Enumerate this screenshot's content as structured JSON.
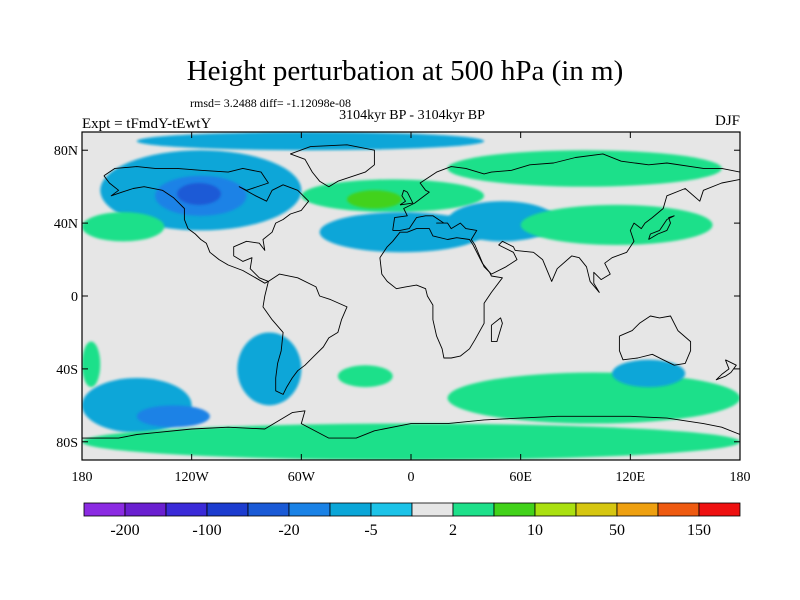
{
  "chart_data": {
    "type": "heatmap",
    "title": "Height perturbation at 500 hPa (in m)",
    "stats": "rmsd= 3.2488  diff= -1.12098e-08",
    "subtitle": "3104kyr BP - 3104kyr BP",
    "left_label": "Expt = tFmdY-tEwtY",
    "right_label": "DJF",
    "projection": "cylindrical-equidistant",
    "x_range": [
      -180,
      180
    ],
    "y_range": [
      -90,
      90
    ],
    "y_ticks": [
      {
        "lat": 80,
        "label": "80N"
      },
      {
        "lat": 40,
        "label": "40N"
      },
      {
        "lat": 0,
        "label": "0"
      },
      {
        "lat": -40,
        "label": "40S"
      },
      {
        "lat": -80,
        "label": "80S"
      }
    ],
    "x_ticks": [
      {
        "lon": -180,
        "label": "180"
      },
      {
        "lon": -120,
        "label": "120W"
      },
      {
        "lon": -60,
        "label": "60W"
      },
      {
        "lon": 0,
        "label": "0"
      },
      {
        "lon": 60,
        "label": "60E"
      },
      {
        "lon": 120,
        "label": "120E"
      },
      {
        "lon": 180,
        "label": "180"
      }
    ],
    "colorbar": {
      "levels": [
        -200,
        -150,
        -100,
        -50,
        -20,
        -10,
        -5,
        -2,
        2,
        5,
        10,
        20,
        50,
        100,
        150,
        200
      ],
      "labels": [
        "-200",
        "-100",
        "-20",
        "-5",
        "2",
        "10",
        "50",
        "150"
      ],
      "colors": [
        "#8b2be2",
        "#6a1fd0",
        "#3a2ad8",
        "#1c3ccf",
        "#1a5ad6",
        "#1a82e6",
        "#0aa6d8",
        "#1cc3e8",
        "#e6e6e6",
        "#1ee08a",
        "#42d21a",
        "#aae010",
        "#d6c610",
        "#eea010",
        "#ee5a10",
        "#ee1010"
      ]
    },
    "blobs": [
      {
        "lon": [
          -150,
          40
        ],
        "lat": [
          80,
          90
        ],
        "level": "-5",
        "note": "Arctic negative band"
      },
      {
        "lon": [
          -170,
          -60
        ],
        "lat": [
          36,
          80
        ],
        "level": "-5",
        "note": "North Pacific / North America low"
      },
      {
        "lon": [
          -140,
          -90
        ],
        "lat": [
          44,
          66
        ],
        "level": "-10"
      },
      {
        "lon": [
          -128,
          -104
        ],
        "lat": [
          50,
          62
        ],
        "level": "-20"
      },
      {
        "lon": [
          -60,
          40
        ],
        "lat": [
          46,
          64
        ],
        "level": "5",
        "note": "North Atlantic / Europe high"
      },
      {
        "lon": [
          -35,
          -5
        ],
        "lat": [
          48,
          58
        ],
        "level": "10"
      },
      {
        "lon": [
          -180,
          -135
        ],
        "lat": [
          30,
          46
        ],
        "level": "5"
      },
      {
        "lon": [
          -50,
          40
        ],
        "lat": [
          24,
          46
        ],
        "level": "-5",
        "note": "Subtropical Atlantic low"
      },
      {
        "lon": [
          20,
          80
        ],
        "lat": [
          30,
          52
        ],
        "level": "-5"
      },
      {
        "lon": [
          20,
          170
        ],
        "lat": [
          60,
          80
        ],
        "level": "5",
        "note": "Siberia high"
      },
      {
        "lon": [
          60,
          165
        ],
        "lat": [
          28,
          50
        ],
        "level": "5",
        "note": "East Asia high"
      },
      {
        "lon": [
          -180,
          -120
        ],
        "lat": [
          -75,
          -45
        ],
        "level": "-5",
        "note": "South Pacific low"
      },
      {
        "lon": [
          -150,
          -110
        ],
        "lat": [
          -72,
          -60
        ],
        "level": "-10"
      },
      {
        "lon": [
          -95,
          -60
        ],
        "lat": [
          -60,
          -20
        ],
        "level": "-5"
      },
      {
        "lon": [
          -180,
          180
        ],
        "lat": [
          -90,
          -70
        ],
        "level": "5",
        "note": "Antarctic high ring"
      },
      {
        "lon": [
          20,
          180
        ],
        "lat": [
          -70,
          -42
        ],
        "level": "5",
        "note": "Southern Ocean high"
      },
      {
        "lon": [
          110,
          150
        ],
        "lat": [
          -50,
          -35
        ],
        "level": "-5"
      },
      {
        "lon": [
          -40,
          -10
        ],
        "lat": [
          -50,
          -38
        ],
        "level": "5"
      },
      {
        "lon": [
          -180,
          -170
        ],
        "lat": [
          -25,
          -50
        ],
        "level": "5"
      }
    ]
  }
}
